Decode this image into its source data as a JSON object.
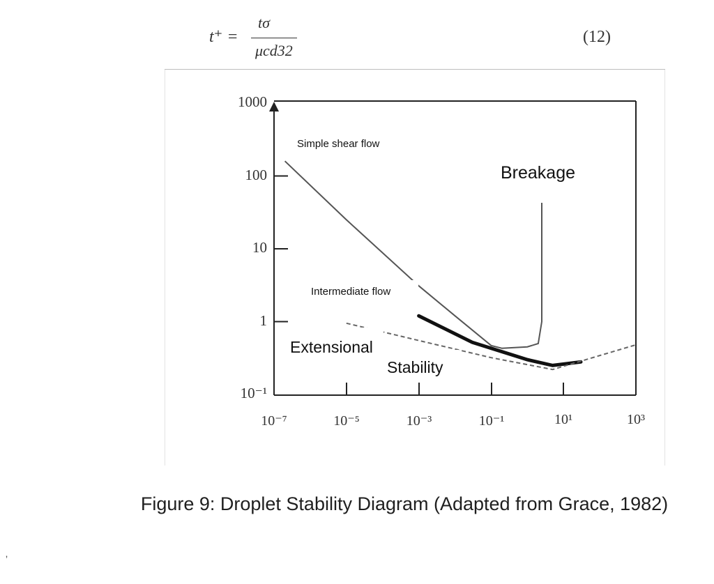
{
  "equation": {
    "lhs": "t⁺ =",
    "numerator": "tσ",
    "denominator": "μcd32",
    "tag": "(12)"
  },
  "chart_data": {
    "type": "line",
    "x_scale": "log",
    "y_scale": "log",
    "xlim": [
      1e-07,
      1000
    ],
    "ylim": [
      0.1,
      1000
    ],
    "x_ticks": [
      {
        "value": 1e-07,
        "label": "10⁻⁷"
      },
      {
        "value": 1e-05,
        "label": "10⁻⁵"
      },
      {
        "value": 0.001,
        "label": "10⁻³"
      },
      {
        "value": 0.1,
        "label": "10⁻¹"
      },
      {
        "value": 10,
        "label": "10¹"
      },
      {
        "value": 1000,
        "label": "10³"
      }
    ],
    "y_ticks": [
      {
        "value": 1000,
        "label": "1000"
      },
      {
        "value": 100,
        "label": "100"
      },
      {
        "value": 10,
        "label": "10"
      },
      {
        "value": 1,
        "label": "1"
      },
      {
        "value": 0.1,
        "label": "10⁻¹"
      }
    ],
    "series": [
      {
        "name": "Simple shear flow",
        "style": "thin-solid",
        "points": [
          [
            2e-07,
            160
          ],
          [
            1e-05,
            25
          ],
          [
            0.001,
            3.1
          ],
          [
            0.01,
            1.2
          ],
          [
            0.1,
            0.47
          ],
          [
            0.2,
            0.43
          ],
          [
            1,
            0.45
          ],
          [
            2,
            0.5
          ],
          [
            2.5,
            1
          ],
          [
            2.5,
            150
          ]
        ]
      },
      {
        "name": "Intermediate flow",
        "style": "thick-solid",
        "points": [
          [
            0.001,
            1.2
          ],
          [
            0.03,
            0.52
          ],
          [
            1,
            0.3
          ],
          [
            5,
            0.25
          ],
          [
            30,
            0.28
          ]
        ]
      },
      {
        "name": "Extensional",
        "style": "dashed",
        "points": [
          [
            1e-05,
            0.95
          ],
          [
            0.001,
            0.55
          ],
          [
            0.1,
            0.32
          ],
          [
            5,
            0.22
          ],
          [
            1000,
            0.48
          ]
        ]
      }
    ],
    "annotations": [
      {
        "text": "Simple shear flow"
      },
      {
        "text": "Breakage"
      },
      {
        "text": "Intermediate flow"
      },
      {
        "text": "Extensional"
      },
      {
        "text": "Stability"
      }
    ]
  },
  "caption": "Figure 9: Droplet Stability Diagram (Adapted from Grace, 1982)",
  "stray_mark": "ʼ"
}
